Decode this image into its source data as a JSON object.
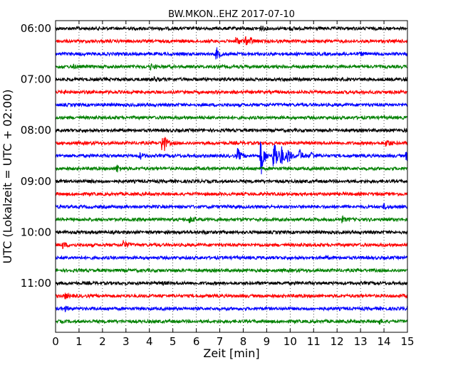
{
  "chart_data": {
    "type": "line",
    "title": "BW.MKON..EHZ 2017-07-10",
    "xlabel": "Zeit  [min]",
    "ylabel": "UTC (Lokalzeit = UTC + 02:00)",
    "xlim": [
      0,
      15
    ],
    "x_ticks": [
      "0",
      "1",
      "2",
      "3",
      "4",
      "5",
      "6",
      "7",
      "8",
      "9",
      "10",
      "11",
      "12",
      "13",
      "14",
      "15"
    ],
    "y_tick_labels": [
      "06:00",
      "07:00",
      "08:00",
      "09:00",
      "10:00",
      "11:00"
    ],
    "trace_start_hour": 6.0,
    "trace_interval_minutes": 15,
    "trace_count": 24,
    "colors": [
      "#000000",
      "#ff0000",
      "#0000ff",
      "#008000"
    ],
    "grid": true,
    "series": [
      {
        "start": "06:00",
        "events": [
          {
            "t": 8.75,
            "amp": 0.25
          },
          {
            "t": 10.0,
            "amp": 0.15
          }
        ]
      },
      {
        "start": "06:15",
        "events": [
          {
            "t": 7.7,
            "amp": 0.55
          },
          {
            "t": 8.1,
            "amp": 0.4
          },
          {
            "t": 8.3,
            "amp": 0.3
          }
        ]
      },
      {
        "start": "06:30",
        "events": [
          {
            "t": 6.85,
            "amp": 0.75
          },
          {
            "t": 13.0,
            "amp": 0.15
          }
        ]
      },
      {
        "start": "06:45",
        "events": [
          {
            "t": 0.7,
            "amp": 0.2
          },
          {
            "t": 4.05,
            "amp": 0.3
          }
        ]
      },
      {
        "start": "07:00",
        "events": [
          {
            "t": 4.2,
            "amp": 0.25
          },
          {
            "t": 14.9,
            "amp": 0.2
          }
        ]
      },
      {
        "start": "07:15",
        "events": [
          {
            "t": 0.3,
            "amp": 0.15
          }
        ]
      },
      {
        "start": "07:30",
        "events": []
      },
      {
        "start": "07:45",
        "events": []
      },
      {
        "start": "08:00",
        "events": [
          {
            "t": 14.9,
            "amp": 0.15
          }
        ]
      },
      {
        "start": "08:15",
        "events": [
          {
            "t": 4.55,
            "amp": 1.7
          },
          {
            "t": 14.1,
            "amp": 0.5
          }
        ]
      },
      {
        "start": "08:30",
        "events": [
          {
            "t": 3.6,
            "amp": 0.35
          },
          {
            "t": 7.75,
            "amp": 0.9
          },
          {
            "t": 8.75,
            "amp": 2.5
          },
          {
            "t": 9.3,
            "amp": 2.8
          },
          {
            "t": 9.6,
            "amp": 1.2
          },
          {
            "t": 9.9,
            "amp": 0.9
          },
          {
            "t": 10.4,
            "amp": 0.7
          },
          {
            "t": 10.9,
            "amp": 0.5
          },
          {
            "t": 14.95,
            "amp": 0.6
          }
        ]
      },
      {
        "start": "08:45",
        "events": [
          {
            "t": 2.6,
            "amp": 0.5
          }
        ]
      },
      {
        "start": "09:00",
        "events": [
          {
            "t": 1.5,
            "amp": 0.1
          }
        ]
      },
      {
        "start": "09:15",
        "events": []
      },
      {
        "start": "09:30",
        "events": [
          {
            "t": 14.0,
            "amp": 0.25
          }
        ]
      },
      {
        "start": "09:45",
        "events": [
          {
            "t": 5.7,
            "amp": 0.4
          },
          {
            "t": 12.2,
            "amp": 0.3
          }
        ]
      },
      {
        "start": "10:00",
        "events": [
          {
            "t": 6.3,
            "amp": 0.12
          }
        ]
      },
      {
        "start": "10:15",
        "events": [
          {
            "t": 0.3,
            "amp": 0.35
          },
          {
            "t": 2.9,
            "amp": 0.55
          }
        ]
      },
      {
        "start": "10:30",
        "events": [
          {
            "t": 11.5,
            "amp": 0.12
          }
        ]
      },
      {
        "start": "10:45",
        "events": []
      },
      {
        "start": "11:00",
        "events": [
          {
            "t": 4.6,
            "amp": 0.12
          }
        ]
      },
      {
        "start": "11:15",
        "events": [
          {
            "t": 0.4,
            "amp": 0.3
          },
          {
            "t": 14.95,
            "amp": 0.15
          }
        ]
      },
      {
        "start": "11:30",
        "events": [
          {
            "t": 0.4,
            "amp": 0.25
          }
        ]
      },
      {
        "start": "11:45",
        "events": [
          {
            "t": 13.8,
            "amp": 0.25
          }
        ]
      }
    ]
  }
}
